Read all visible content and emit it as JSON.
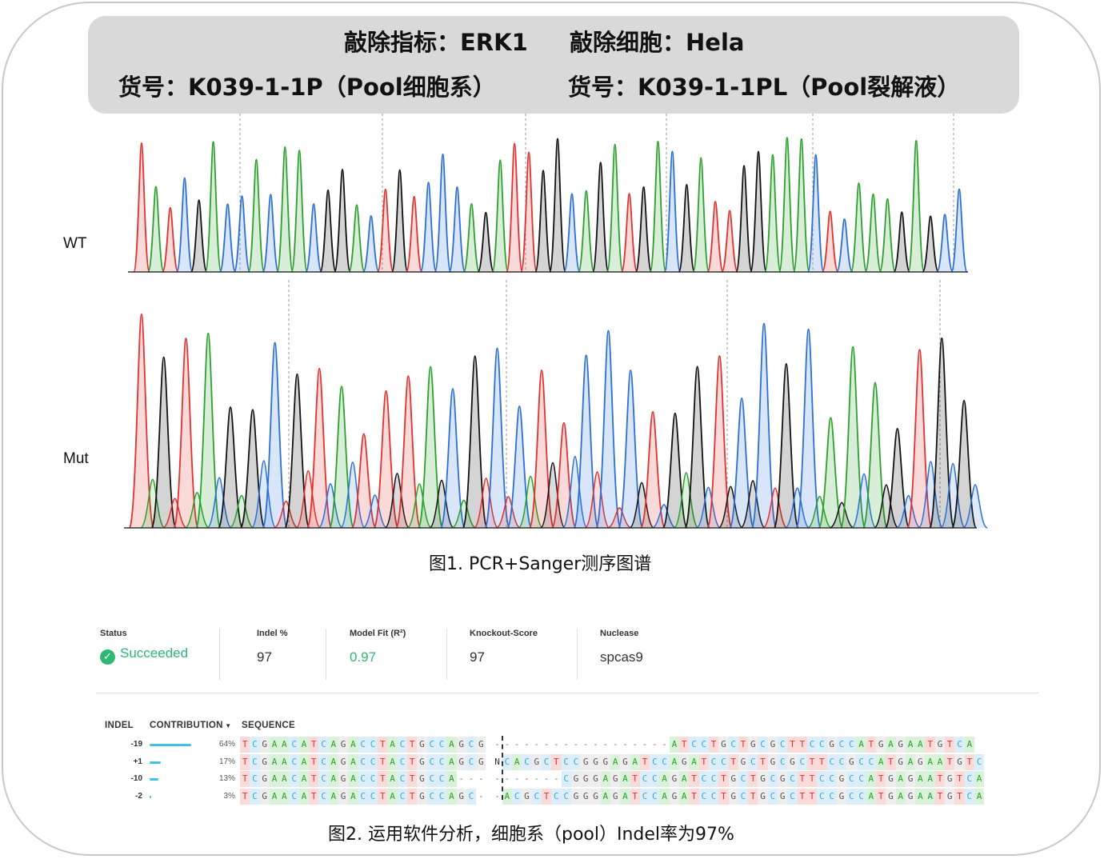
{
  "header": {
    "line1_left": "敲除指标：ERK1",
    "line1_right": "敲除细胞：Hela",
    "line2_left": "货号：K039-1-1P（Pool细胞系）",
    "line2_right": "货号：K039-1-1PL（Pool裂解液）"
  },
  "traces": {
    "wt_label": "WT",
    "mut_label": "Mut"
  },
  "figure1_caption": "图1. PCR+Sanger测序图谱",
  "summary": {
    "status_label": "Status",
    "status_value": "Succeeded",
    "indel_label": "Indel %",
    "indel_value": "97",
    "model_fit_label": "Model Fit (R²)",
    "model_fit_value": "0.97",
    "ko_label": "Knockout-Score",
    "ko_value": "97",
    "nuclease_label": "Nuclease",
    "nuclease_value": "spcas9"
  },
  "table": {
    "col_indel": "INDEL",
    "col_contribution": "CONTRIBUTION",
    "col_sequence": "SEQUENCE",
    "rows": [
      {
        "indel": "-19",
        "contribution": 64,
        "pct": "64%",
        "seq": "TCGAACATCAGACCTACTGCCAGCG------------------ATCCTGCTGCGCTTCCGCCATGAGAATGTCA"
      },
      {
        "indel": "+1",
        "contribution": 17,
        "pct": "17%",
        "seq": "TCGAACATCAGACCTACTGCCAGCGNCACGCTCCGGGAGATCCAGATCCTGCTGCGCTTCCGCCATGAGAATGTC"
      },
      {
        "indel": "-10",
        "contribution": 13,
        "pct": "13%",
        "seq": "TCGAACATCAGACCTACTGCCA----------CGGGAGATCCAGATCCTGCTGCGCTTCCGCCATGAGAATGTCA"
      },
      {
        "indel": "-2",
        "contribution": 3,
        "pct": "3%",
        "seq": "TCGAACATCAGACCTACTGCCAGC--ACGCTCCGGGAGATCCAGATCCTGCTGCGCTTCCGCCATGAGAATGTCA"
      }
    ]
  },
  "figure2_caption": "图2. 运用软件分析，细胞系（pool）Indel率为97%",
  "colors": {
    "A": "#2ca02c",
    "C": "#2b6fd6",
    "G": "#111111",
    "T": "#e0312f",
    "accent": "#42c0e6",
    "success": "#2eb872"
  }
}
